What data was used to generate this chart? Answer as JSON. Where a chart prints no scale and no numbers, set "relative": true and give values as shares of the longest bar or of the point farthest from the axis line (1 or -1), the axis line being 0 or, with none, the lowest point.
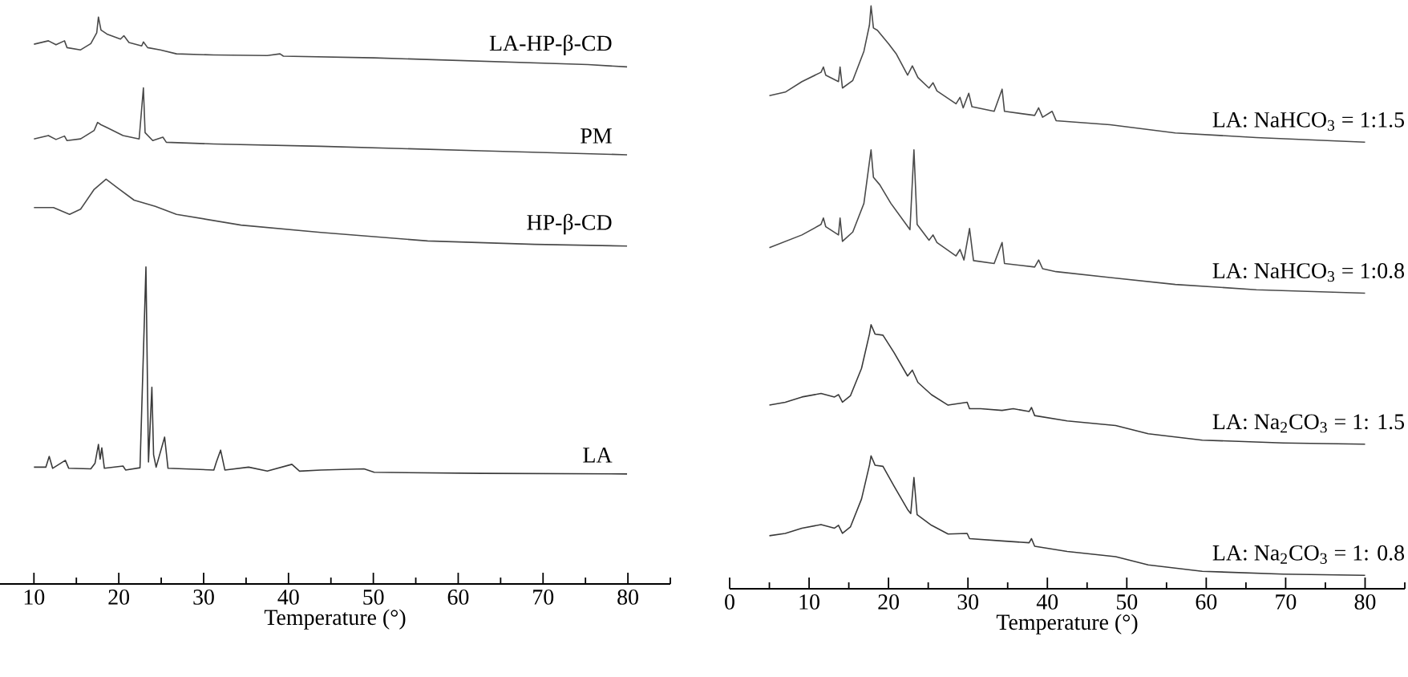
{
  "chart_data": [
    {
      "type": "line",
      "relative": true,
      "xlabel": "Temperature (°)",
      "xlim": [
        6,
        85
      ],
      "tick_labels": "x",
      "line_style": "solid",
      "xticks": [
        10,
        {
          "value": 15,
          "label": null
        },
        20,
        {
          "value": 25,
          "label": null
        },
        30,
        {
          "value": 35,
          "label": null
        },
        40,
        {
          "value": 45,
          "label": null
        },
        50,
        {
          "value": 55,
          "label": null
        },
        60,
        {
          "value": 65,
          "label": null
        },
        70,
        {
          "value": 75,
          "label": null
        },
        80,
        {
          "value": 85,
          "label": null
        }
      ],
      "series": [
        {
          "name": "LA-HP-β-CD",
          "color": "#4a4a4a",
          "x": [
            10,
            11.7,
            12.6,
            13.6,
            13.9,
            15.5,
            16.7,
            17.4,
            17.6,
            17.9,
            18.6,
            20.2,
            20.6,
            21.2,
            22.7,
            22.9,
            23.4,
            24.9,
            26.8,
            31.2,
            37.5,
            39,
            39.4,
            50.1,
            62.7,
            75.3,
            79.9
          ],
          "values": [
            0.952,
            0.958,
            0.951,
            0.958,
            0.946,
            0.942,
            0.953,
            0.972,
            1.0,
            0.977,
            0.97,
            0.961,
            0.967,
            0.955,
            0.949,
            0.956,
            0.946,
            0.942,
            0.935,
            0.933,
            0.932,
            0.935,
            0.931,
            0.928,
            0.922,
            0.916,
            0.912
          ]
        },
        {
          "name": "PM",
          "color": "#4a4a4a",
          "x": [
            10,
            11.7,
            12.6,
            13.6,
            13.9,
            15.5,
            17.1,
            17.5,
            17.9,
            18.6,
            20.5,
            22.4,
            22.9,
            23.1,
            24.0,
            25.2,
            25.6,
            31.2,
            43.8,
            62.7,
            79.9
          ],
          "values": [
            0.785,
            0.791,
            0.784,
            0.79,
            0.782,
            0.785,
            0.8,
            0.814,
            0.81,
            0.805,
            0.791,
            0.785,
            0.875,
            0.796,
            0.782,
            0.788,
            0.779,
            0.776,
            0.772,
            0.764,
            0.757
          ]
        },
        {
          "name": "HP-β-CD",
          "color": "#4a4a4a",
          "x": [
            10,
            12.3,
            14.2,
            15.5,
            17.1,
            18.5,
            19.9,
            21.8,
            24.3,
            26.8,
            34.4,
            43.8,
            56.4,
            69.0,
            79.9
          ],
          "values": [
            0.664,
            0.664,
            0.652,
            0.661,
            0.696,
            0.714,
            0.698,
            0.677,
            0.666,
            0.652,
            0.633,
            0.62,
            0.605,
            0.599,
            0.596
          ]
        },
        {
          "name": "LA",
          "color": "#3a3a3a",
          "x": [
            10,
            11.4,
            11.8,
            12.2,
            13.7,
            14.1,
            16.7,
            17.2,
            17.6,
            17.8,
            18.0,
            18.3,
            20.5,
            20.8,
            22.5,
            23.2,
            23.5,
            23.9,
            24.1,
            24.4,
            25.4,
            25.8,
            31.2,
            31.5,
            32.0,
            32.5,
            35.3,
            37.5,
            40.4,
            41.3,
            43.8,
            48.9,
            50.1,
            62.7,
            79.9
          ],
          "values": [
            0.206,
            0.206,
            0.225,
            0.204,
            0.218,
            0.204,
            0.203,
            0.213,
            0.246,
            0.22,
            0.24,
            0.204,
            0.208,
            0.201,
            0.205,
            0.559,
            0.215,
            0.347,
            0.228,
            0.206,
            0.259,
            0.204,
            0.201,
            0.215,
            0.236,
            0.201,
            0.206,
            0.199,
            0.211,
            0.199,
            0.201,
            0.203,
            0.197,
            0.195,
            0.194
          ]
        }
      ]
    },
    {
      "type": "line",
      "relative": true,
      "xlabel": "Temperature (°)",
      "xlim": [
        0,
        85
      ],
      "tick_labels": "x",
      "line_style": "solid",
      "xticks": [
        0,
        {
          "value": 5,
          "label": null
        },
        10,
        {
          "value": 15,
          "label": null
        },
        20,
        {
          "value": 25,
          "label": null
        },
        30,
        {
          "value": 35,
          "label": null
        },
        40,
        {
          "value": 45,
          "label": null
        },
        50,
        {
          "value": 55,
          "label": null
        },
        60,
        {
          "value": 65,
          "label": null
        },
        70,
        {
          "value": 75,
          "label": null
        },
        80,
        {
          "value": 85,
          "label": null
        }
      ],
      "series": [
        {
          "name": "LA: NaHCO$_{3}$ = 1:1.5",
          "color": "#4a4a4a",
          "x": [
            5.0,
            7.0,
            9.1,
            11.5,
            11.8,
            12.1,
            13.7,
            13.9,
            14.2,
            15.5,
            16.9,
            17.6,
            17.8,
            18.1,
            18.6,
            20.0,
            21.0,
            22.4,
            23.0,
            23.7,
            25.1,
            25.6,
            26.1,
            28.5,
            29.0,
            29.4,
            30.1,
            30.5,
            33.3,
            34.3,
            34.6,
            38.4,
            38.9,
            39.4,
            40.6,
            41.1,
            47.9,
            56.1,
            66.3,
            80.0
          ],
          "values": [
            0.846,
            0.852,
            0.87,
            0.886,
            0.895,
            0.881,
            0.87,
            0.895,
            0.859,
            0.872,
            0.922,
            0.967,
            1.0,
            0.962,
            0.958,
            0.935,
            0.917,
            0.881,
            0.897,
            0.877,
            0.859,
            0.868,
            0.854,
            0.832,
            0.843,
            0.825,
            0.85,
            0.827,
            0.819,
            0.857,
            0.819,
            0.812,
            0.825,
            0.809,
            0.819,
            0.803,
            0.796,
            0.782,
            0.774,
            0.766
          ]
        },
        {
          "name": "LA: NaHCO$_{3}$ = 1:0.8",
          "color": "#4a4a4a",
          "x": [
            5.0,
            9.1,
            11.5,
            11.8,
            12.1,
            13.7,
            13.9,
            14.2,
            15.5,
            16.9,
            17.8,
            18.1,
            18.9,
            20.3,
            22.7,
            23.2,
            23.6,
            25.1,
            25.6,
            26.1,
            28.5,
            29.0,
            29.5,
            30.2,
            30.7,
            33.3,
            34.3,
            34.6,
            38.4,
            38.9,
            39.4,
            41.1,
            47.9,
            56.1,
            66.3,
            80.0
          ],
          "values": [
            0.585,
            0.607,
            0.625,
            0.636,
            0.621,
            0.607,
            0.636,
            0.596,
            0.612,
            0.661,
            0.753,
            0.706,
            0.693,
            0.661,
            0.616,
            0.753,
            0.625,
            0.598,
            0.607,
            0.594,
            0.571,
            0.582,
            0.564,
            0.618,
            0.563,
            0.558,
            0.594,
            0.558,
            0.552,
            0.564,
            0.549,
            0.544,
            0.534,
            0.522,
            0.513,
            0.507
          ]
        },
        {
          "name": "LA: Na$_{2}$CO$_{3}$ = 1: 1.5",
          "color": "#3a3a3a",
          "x": [
            5.0,
            7.0,
            9.1,
            11.5,
            13.2,
            13.7,
            14.2,
            15.2,
            16.6,
            17.6,
            17.8,
            18.3,
            19.3,
            20.7,
            22.4,
            23.0,
            23.7,
            25.4,
            27.5,
            29.9,
            30.2,
            31.6,
            34.3,
            35.7,
            37.7,
            38.0,
            38.4,
            42.5,
            48.6,
            52.7,
            59.5,
            69.7,
            80.0
          ],
          "values": [
            0.315,
            0.32,
            0.329,
            0.335,
            0.329,
            0.333,
            0.32,
            0.331,
            0.378,
            0.437,
            0.453,
            0.437,
            0.435,
            0.405,
            0.365,
            0.375,
            0.354,
            0.333,
            0.315,
            0.32,
            0.309,
            0.309,
            0.306,
            0.309,
            0.304,
            0.311,
            0.297,
            0.288,
            0.28,
            0.266,
            0.255,
            0.25,
            0.248
          ]
        },
        {
          "name": "LA: Na$_{2}$CO$_{3}$ = 1: 0.8",
          "color": "#3a3a3a",
          "x": [
            5.0,
            7.0,
            9.1,
            11.5,
            13.2,
            13.7,
            14.2,
            15.2,
            16.6,
            17.6,
            17.8,
            18.3,
            19.3,
            20.7,
            22.4,
            22.8,
            23.2,
            23.6,
            25.4,
            27.5,
            29.9,
            30.2,
            34.3,
            37.7,
            38.0,
            38.4,
            42.5,
            48.6,
            52.7,
            59.5,
            69.7,
            80.0
          ],
          "values": [
            0.091,
            0.095,
            0.104,
            0.11,
            0.104,
            0.109,
            0.095,
            0.106,
            0.154,
            0.212,
            0.228,
            0.212,
            0.21,
            0.176,
            0.136,
            0.129,
            0.191,
            0.127,
            0.109,
            0.094,
            0.095,
            0.086,
            0.082,
            0.079,
            0.086,
            0.073,
            0.064,
            0.055,
            0.041,
            0.03,
            0.025,
            0.023
          ]
        }
      ]
    }
  ]
}
